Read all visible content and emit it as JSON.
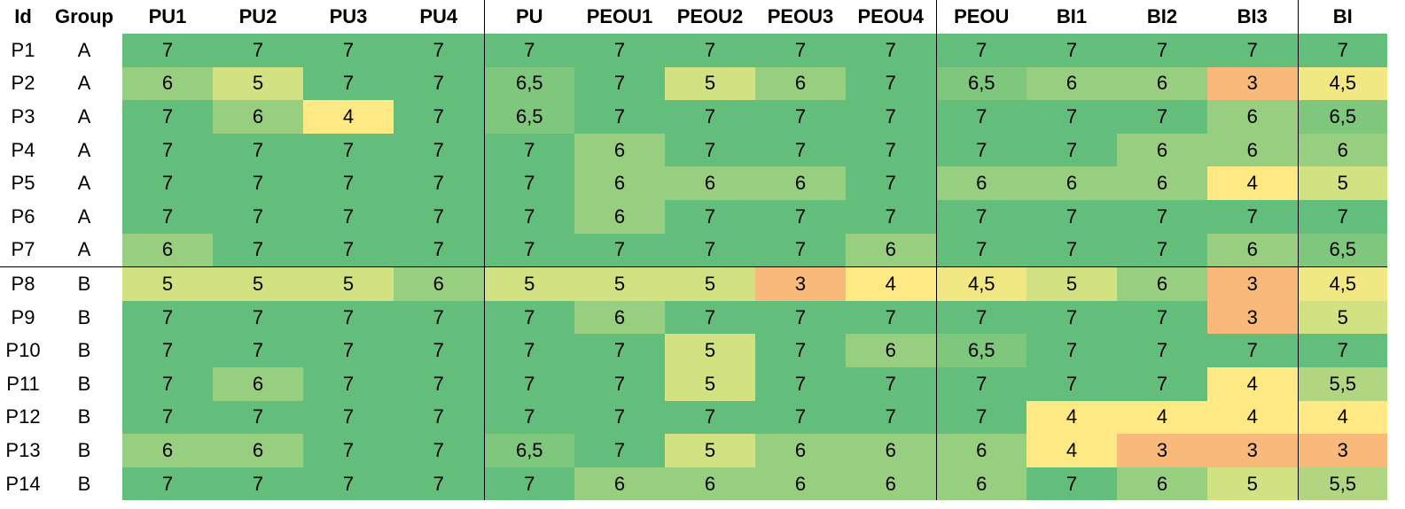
{
  "chart_data": {
    "type": "heatmap",
    "columns": [
      "Id",
      "Group",
      "PU1",
      "PU2",
      "PU3",
      "PU4",
      "PU",
      "PEOU1",
      "PEOU2",
      "PEOU3",
      "PEOU4",
      "PEOU",
      "BI1",
      "BI2",
      "BI3",
      "BI"
    ],
    "rows": [
      {
        "id": "P1",
        "group": "A",
        "values": [
          "7",
          "7",
          "7",
          "7",
          "7",
          "7",
          "7",
          "7",
          "7",
          "7",
          "7",
          "7",
          "7",
          "7"
        ]
      },
      {
        "id": "P2",
        "group": "A",
        "values": [
          "6",
          "5",
          "7",
          "7",
          "6,5",
          "7",
          "5",
          "6",
          "7",
          "6,5",
          "6",
          "6",
          "3",
          "4,5"
        ]
      },
      {
        "id": "P3",
        "group": "A",
        "values": [
          "7",
          "6",
          "4",
          "7",
          "6,5",
          "7",
          "7",
          "7",
          "7",
          "7",
          "7",
          "7",
          "6",
          "6,5"
        ]
      },
      {
        "id": "P4",
        "group": "A",
        "values": [
          "7",
          "7",
          "7",
          "7",
          "7",
          "6",
          "7",
          "7",
          "7",
          "7",
          "7",
          "6",
          "6",
          "6"
        ]
      },
      {
        "id": "P5",
        "group": "A",
        "values": [
          "7",
          "7",
          "7",
          "7",
          "7",
          "6",
          "6",
          "6",
          "7",
          "6",
          "6",
          "6",
          "4",
          "5"
        ]
      },
      {
        "id": "P6",
        "group": "A",
        "values": [
          "7",
          "7",
          "7",
          "7",
          "7",
          "6",
          "7",
          "7",
          "7",
          "7",
          "7",
          "7",
          "7",
          "7"
        ]
      },
      {
        "id": "P7",
        "group": "A",
        "values": [
          "6",
          "7",
          "7",
          "7",
          "7",
          "7",
          "7",
          "7",
          "6",
          "7",
          "7",
          "7",
          "6",
          "6,5"
        ]
      },
      {
        "id": "P8",
        "group": "B",
        "values": [
          "5",
          "5",
          "5",
          "6",
          "5",
          "5",
          "5",
          "3",
          "4",
          "4,5",
          "5",
          "6",
          "3",
          "4,5"
        ]
      },
      {
        "id": "P9",
        "group": "B",
        "values": [
          "7",
          "7",
          "7",
          "7",
          "7",
          "6",
          "7",
          "7",
          "7",
          "7",
          "7",
          "7",
          "3",
          "5"
        ]
      },
      {
        "id": "P10",
        "group": "B",
        "values": [
          "7",
          "7",
          "7",
          "7",
          "7",
          "7",
          "5",
          "7",
          "6",
          "6,5",
          "7",
          "7",
          "7",
          "7"
        ]
      },
      {
        "id": "P11",
        "group": "B",
        "values": [
          "7",
          "6",
          "7",
          "7",
          "7",
          "7",
          "5",
          "7",
          "7",
          "7",
          "7",
          "7",
          "4",
          "5,5"
        ]
      },
      {
        "id": "P12",
        "group": "B",
        "values": [
          "7",
          "7",
          "7",
          "7",
          "7",
          "7",
          "7",
          "7",
          "7",
          "7",
          "4",
          "4",
          "4",
          "4"
        ]
      },
      {
        "id": "P13",
        "group": "B",
        "values": [
          "6",
          "6",
          "7",
          "7",
          "6,5",
          "7",
          "5",
          "6",
          "6",
          "6",
          "4",
          "3",
          "3",
          "3"
        ]
      },
      {
        "id": "P14",
        "group": "B",
        "values": [
          "7",
          "7",
          "7",
          "7",
          "7",
          "6",
          "6",
          "6",
          "6",
          "6",
          "7",
          "6",
          "5",
          "5,5"
        ]
      }
    ],
    "color_scale": {
      "7": "#63be7b",
      "6.5": "#7fc77d",
      "6": "#98ce7f",
      "5.5": "#b1d580",
      "5": "#d2e181",
      "4.5": "#f2e883",
      "4": "#ffe984",
      "3": "#f8b97b"
    }
  }
}
